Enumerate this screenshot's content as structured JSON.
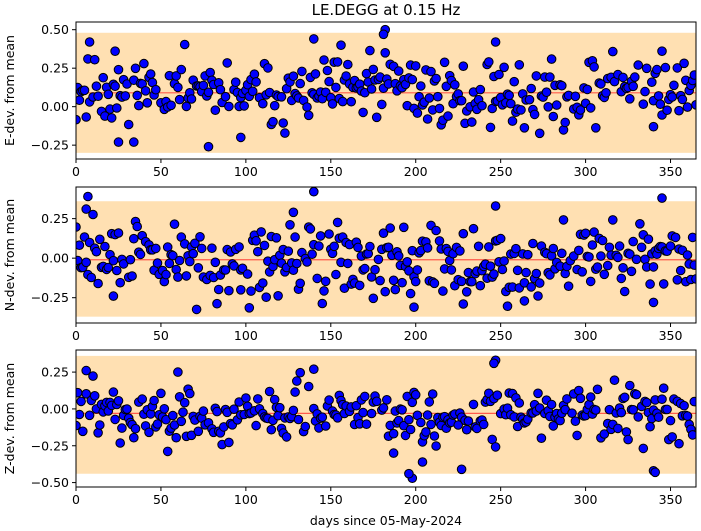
{
  "chart_data": [
    {
      "type": "scatter",
      "title": "LE.DEGG at 0.15 Hz",
      "ylabel": "E-dev. from mean",
      "xlabel": "",
      "xlim": [
        0,
        365
      ],
      "ylim": [
        -0.34,
        0.55
      ],
      "xticks": [
        0,
        50,
        100,
        150,
        200,
        250,
        300,
        350
      ],
      "yticks": [
        -0.25,
        0.0,
        0.25,
        0.5
      ],
      "ytick_labels": [
        "−0.25",
        "0.00",
        "0.25",
        "0.50"
      ],
      "band": [
        -0.3,
        0.48
      ],
      "mean_line": 0.09,
      "seed": 11,
      "noise": 0.11,
      "outliers": [
        [
          8,
          0.42
        ],
        [
          23,
          0.36
        ],
        [
          140,
          0.44
        ],
        [
          182,
          0.5
        ],
        [
          181,
          0.47
        ],
        [
          247,
          0.42
        ],
        [
          345,
          0.36
        ],
        [
          97,
          -0.2
        ],
        [
          78,
          -0.26
        ],
        [
          34,
          -0.23
        ],
        [
          25,
          -0.23
        ],
        [
          340,
          -0.13
        ]
      ],
      "colors": {
        "band": "#ffe0b2",
        "mean_line": "#ff5a4a",
        "marker": "#0000ff",
        "marker_edge": "#000000"
      }
    },
    {
      "type": "scatter",
      "title": "",
      "ylabel": "N-dev. from mean",
      "xlabel": "",
      "xlim": [
        0,
        365
      ],
      "ylim": [
        -0.41,
        0.45
      ],
      "xticks": [
        0,
        50,
        100,
        150,
        200,
        250,
        300,
        350
      ],
      "yticks": [
        -0.25,
        0.0,
        0.25
      ],
      "ytick_labels": [
        "−0.25",
        "0.00",
        "0.25"
      ],
      "band": [
        -0.37,
        0.36
      ],
      "mean_line": -0.01,
      "seed": 29,
      "noise": 0.11,
      "outliers": [
        [
          7,
          0.39
        ],
        [
          6,
          0.31
        ],
        [
          140,
          0.42
        ],
        [
          128,
          0.29
        ],
        [
          247,
          0.33
        ],
        [
          345,
          0.38
        ],
        [
          199,
          -0.31
        ],
        [
          228,
          -0.29
        ],
        [
          340,
          -0.28
        ],
        [
          264,
          -0.27
        ],
        [
          97,
          -0.2
        ],
        [
          22,
          -0.24
        ]
      ],
      "colors": {
        "band": "#ffe0b2",
        "mean_line": "#ff5a4a",
        "marker": "#0000ff",
        "marker_edge": "#000000"
      }
    },
    {
      "type": "scatter",
      "title": "",
      "ylabel": "Z-dev. from mean",
      "xlabel": "days since 05-May-2024",
      "xlim": [
        0,
        365
      ],
      "ylim": [
        -0.53,
        0.4
      ],
      "xticks": [
        0,
        50,
        100,
        150,
        200,
        250,
        300,
        350
      ],
      "yticks": [
        -0.5,
        -0.25,
        0.0,
        0.25
      ],
      "ytick_labels": [
        "−0.50",
        "−0.25",
        "0.00",
        "0.25"
      ],
      "band": [
        -0.44,
        0.36
      ],
      "mean_line": -0.03,
      "seed": 47,
      "noise": 0.1,
      "outliers": [
        [
          247,
          0.33
        ],
        [
          246,
          0.31
        ],
        [
          140,
          0.27
        ],
        [
          6,
          0.26
        ],
        [
          198,
          -0.47
        ],
        [
          196,
          -0.44
        ],
        [
          340,
          -0.42
        ],
        [
          341,
          -0.43
        ],
        [
          227,
          -0.41
        ],
        [
          204,
          -0.36
        ],
        [
          187,
          -0.3
        ],
        [
          60,
          0.25
        ]
      ],
      "colors": {
        "band": "#ffe0b2",
        "mean_line": "#ff5a4a",
        "marker": "#0000ff",
        "marker_edge": "#000000"
      }
    }
  ]
}
